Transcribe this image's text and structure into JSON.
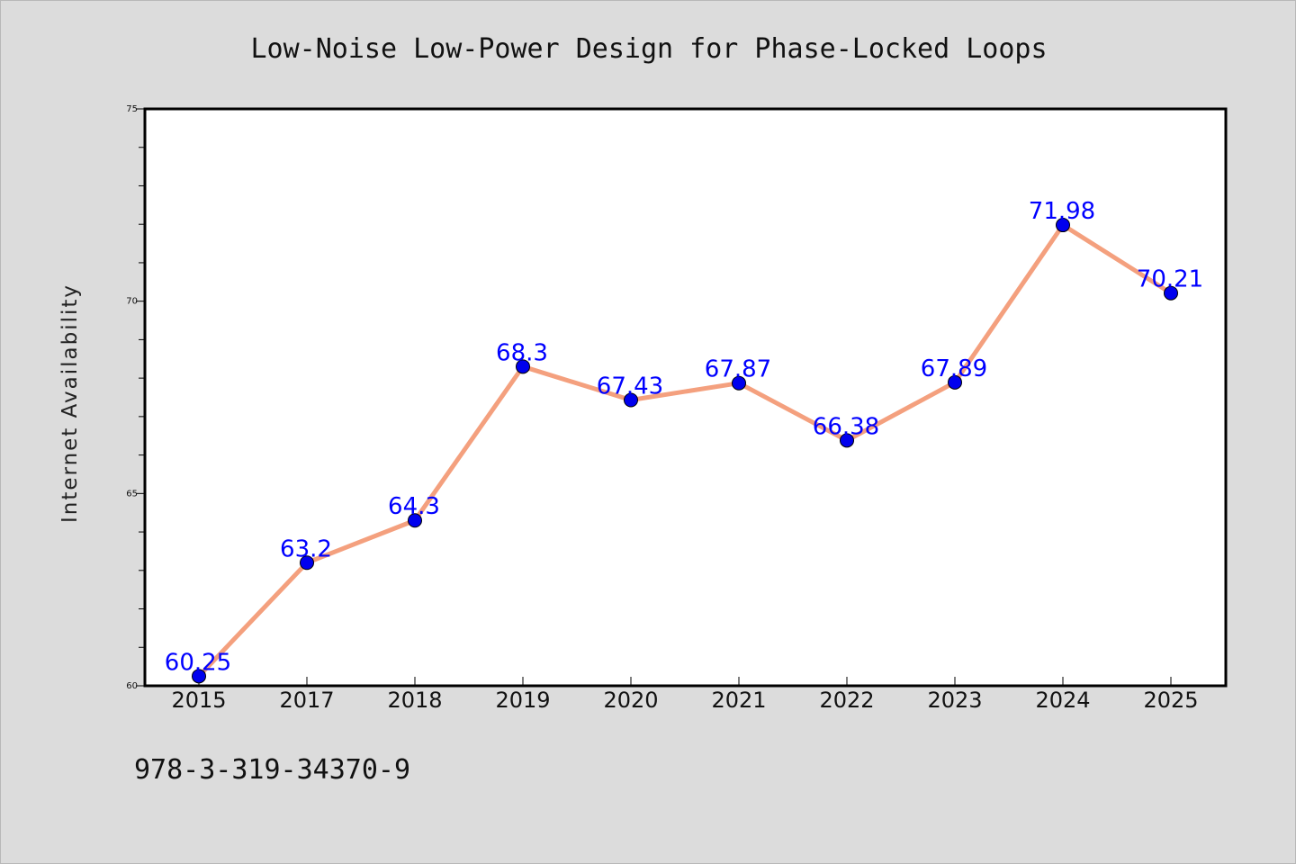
{
  "chart_data": {
    "type": "line",
    "title": "Low-Noise Low-Power Design for Phase-Locked Loops",
    "xlabel": "",
    "ylabel": "Internet Availability",
    "categories": [
      "2015",
      "2017",
      "2018",
      "2019",
      "2020",
      "2021",
      "2022",
      "2023",
      "2024",
      "2025"
    ],
    "series": [
      {
        "values": [
          60.25,
          63.2,
          64.3,
          68.3,
          67.43,
          67.87,
          66.38,
          67.89,
          71.98,
          70.21
        ],
        "line_color": "#f4a07e",
        "marker_color": "#0000ee"
      }
    ],
    "data_labels": [
      "60.25",
      "63.2",
      "64.3",
      "68.3",
      "67.43",
      "67.87",
      "66.38",
      "67.89",
      "71.98",
      "70.21"
    ],
    "ylim": [
      60,
      75
    ],
    "yticks": [
      60,
      65,
      70,
      75
    ],
    "ytick_labels": [
      "60",
      "65",
      "70",
      "75"
    ],
    "grid": false,
    "legend": "none",
    "footnote": "978-3-319-34370-9",
    "colors": {
      "background": "#dcdcdc",
      "plot_background": "#ffffff",
      "label": "#0000ff"
    }
  }
}
